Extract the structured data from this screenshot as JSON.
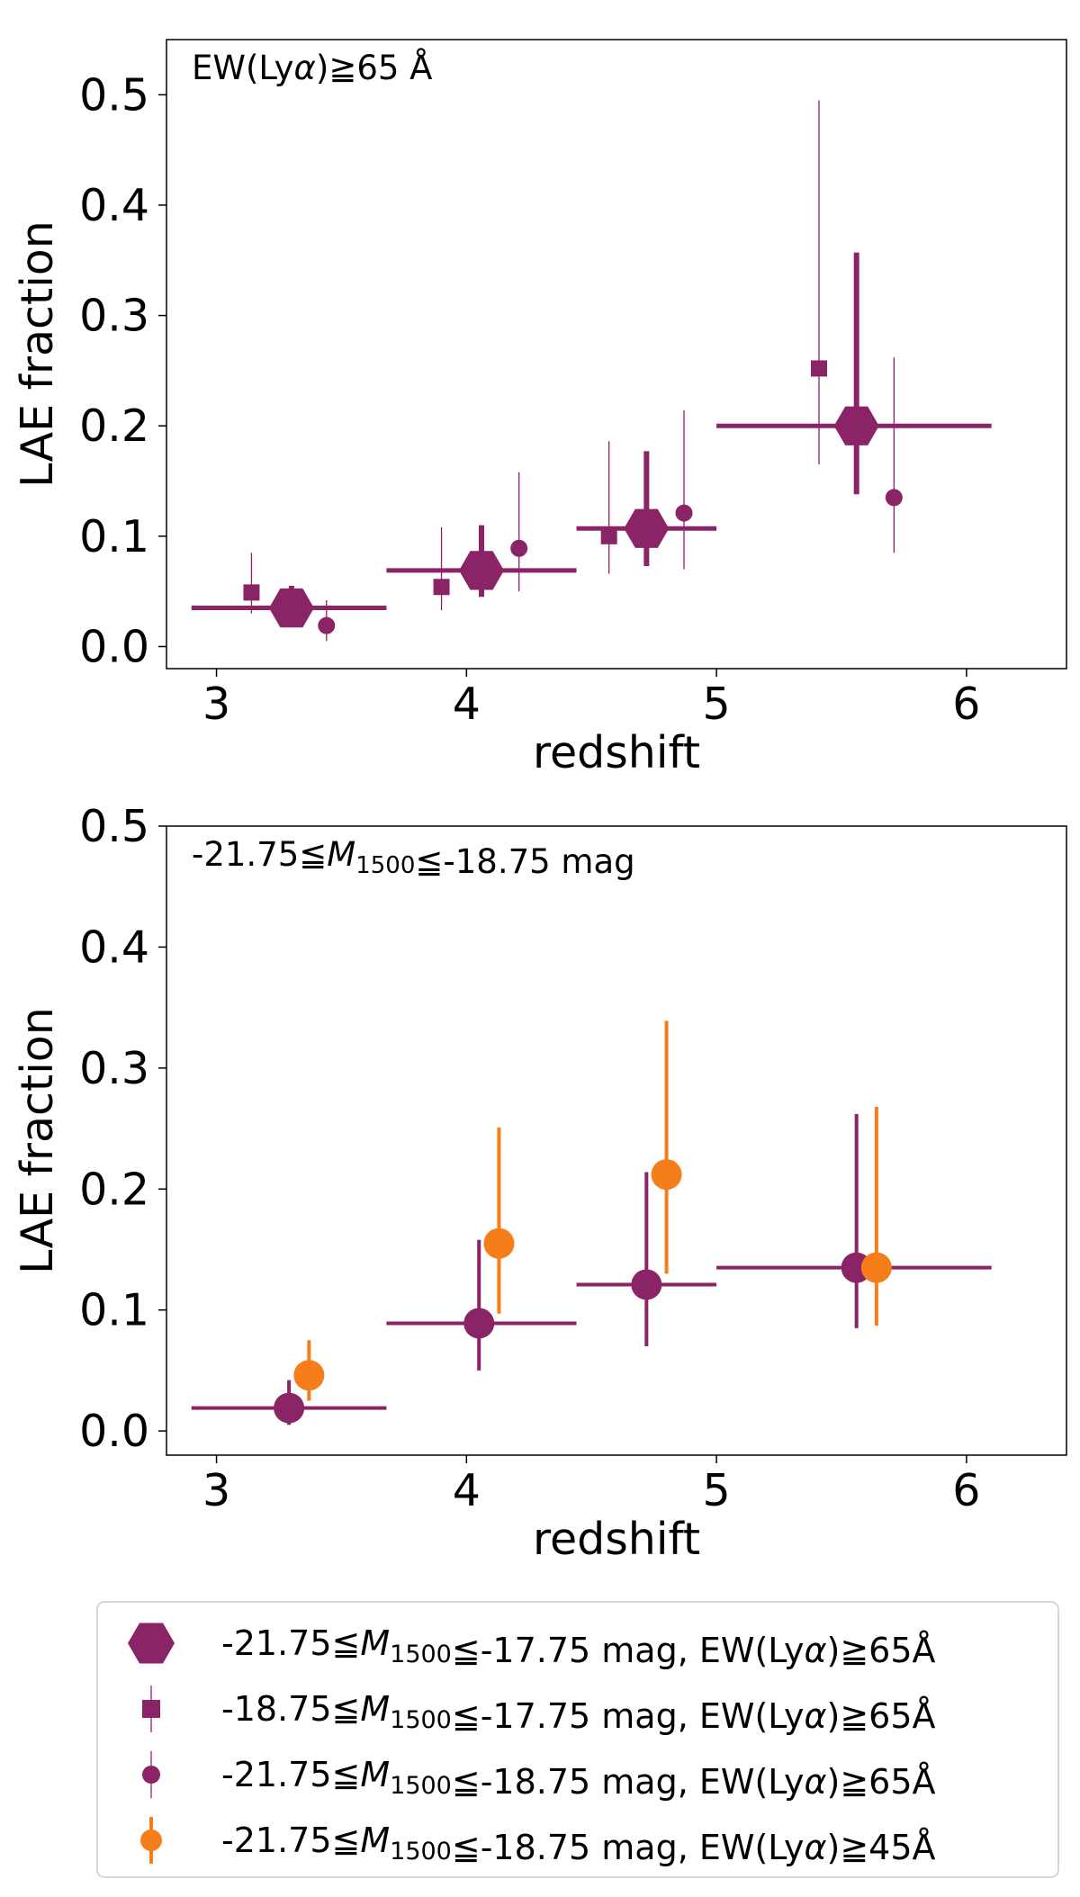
{
  "colors": {
    "purple": "#8B2466",
    "orange": "#F57E1B",
    "axis": "#000000"
  },
  "legend": {
    "items": [
      {
        "marker": "hexagon",
        "color": "#8B2466",
        "label": "-21.75≦M1500≦-17.75 mag, EW(Lyα)≧65Å"
      },
      {
        "marker": "square",
        "color": "#8B2466",
        "label": "-18.75≦M1500≦-17.75 mag, EW(Lyα)≧65Å"
      },
      {
        "marker": "circle-small",
        "color": "#8B2466",
        "label": "-21.75≦M1500≦-18.75 mag, EW(Lyα)≧65Å"
      },
      {
        "marker": "circle",
        "color": "#F57E1B",
        "label": "-21.75≦M1500≦-18.75 mag, EW(Lyα)≧45Å"
      }
    ]
  },
  "chart_data": [
    {
      "type": "scatter",
      "annotation": "EW(Lyα)≧65 Å",
      "xlabel": "redshift",
      "ylabel": "LAE fraction",
      "xlim": [
        2.8,
        6.4
      ],
      "ylim": [
        -0.02,
        0.55
      ],
      "xticks": [
        3,
        4,
        5,
        6
      ],
      "yticks": [
        0.0,
        0.1,
        0.2,
        0.3,
        0.4,
        0.5
      ],
      "series": [
        {
          "name": "-21.75≦M1500≦-17.75 mag, EW(Lyα)≧65Å",
          "marker": "hexagon",
          "color": "#8B2466",
          "points": [
            {
              "x": 3.3,
              "y": 0.035,
              "xlo": 2.9,
              "xhi": 3.68,
              "ylo": 0.025,
              "yhi": 0.055
            },
            {
              "x": 4.06,
              "y": 0.069,
              "xlo": 3.68,
              "xhi": 4.44,
              "ylo": 0.045,
              "yhi": 0.11
            },
            {
              "x": 4.72,
              "y": 0.107,
              "xlo": 4.44,
              "xhi": 5.0,
              "ylo": 0.073,
              "yhi": 0.177
            },
            {
              "x": 5.56,
              "y": 0.2,
              "xlo": 5.0,
              "xhi": 6.1,
              "ylo": 0.138,
              "yhi": 0.357
            }
          ]
        },
        {
          "name": "-18.75≦M1500≦-17.75 mag, EW(Lyα)≧65Å",
          "marker": "square",
          "color": "#8B2466",
          "points": [
            {
              "x": 3.14,
              "y": 0.049,
              "ylo": 0.03,
              "yhi": 0.085
            },
            {
              "x": 3.9,
              "y": 0.054,
              "ylo": 0.033,
              "yhi": 0.108
            },
            {
              "x": 4.57,
              "y": 0.1,
              "ylo": 0.066,
              "yhi": 0.186
            },
            {
              "x": 5.41,
              "y": 0.252,
              "ylo": 0.165,
              "yhi": 0.495
            }
          ]
        },
        {
          "name": "-21.75≦M1500≦-18.75 mag, EW(Lyα)≧65Å",
          "marker": "circle-small",
          "color": "#8B2466",
          "points": [
            {
              "x": 3.44,
              "y": 0.019,
              "ylo": 0.005,
              "yhi": 0.042
            },
            {
              "x": 4.21,
              "y": 0.089,
              "ylo": 0.05,
              "yhi": 0.158
            },
            {
              "x": 4.87,
              "y": 0.121,
              "ylo": 0.07,
              "yhi": 0.214
            },
            {
              "x": 5.71,
              "y": 0.135,
              "ylo": 0.085,
              "yhi": 0.262
            }
          ]
        }
      ]
    },
    {
      "type": "scatter",
      "annotation": "-21.75≦M1500≦-18.75 mag",
      "xlabel": "redshift",
      "ylabel": "LAE fraction",
      "xlim": [
        2.8,
        6.4
      ],
      "ylim": [
        -0.02,
        0.5
      ],
      "xticks": [
        3,
        4,
        5,
        6
      ],
      "yticks": [
        0.0,
        0.1,
        0.2,
        0.3,
        0.4,
        0.5
      ],
      "series": [
        {
          "name": "-21.75≦M1500≦-18.75 mag, EW(Lyα)≧65Å",
          "marker": "circle",
          "color": "#8B2466",
          "points": [
            {
              "x": 3.29,
              "y": 0.019,
              "xlo": 2.9,
              "xhi": 3.68,
              "ylo": 0.005,
              "yhi": 0.042
            },
            {
              "x": 4.05,
              "y": 0.089,
              "xlo": 3.68,
              "xhi": 4.44,
              "ylo": 0.05,
              "yhi": 0.158
            },
            {
              "x": 4.72,
              "y": 0.121,
              "xlo": 4.44,
              "xhi": 5.0,
              "ylo": 0.07,
              "yhi": 0.214
            },
            {
              "x": 5.56,
              "y": 0.135,
              "xlo": 5.0,
              "xhi": 6.1,
              "ylo": 0.085,
              "yhi": 0.262
            }
          ]
        },
        {
          "name": "-21.75≦M1500≦-18.75 mag, EW(Lyα)≧45Å",
          "marker": "circle",
          "color": "#F57E1B",
          "points": [
            {
              "x": 3.37,
              "y": 0.046,
              "ylo": 0.025,
              "yhi": 0.075
            },
            {
              "x": 4.13,
              "y": 0.155,
              "ylo": 0.097,
              "yhi": 0.251
            },
            {
              "x": 4.8,
              "y": 0.212,
              "ylo": 0.13,
              "yhi": 0.339
            },
            {
              "x": 5.64,
              "y": 0.135,
              "ylo": 0.087,
              "yhi": 0.268
            }
          ]
        }
      ]
    }
  ]
}
